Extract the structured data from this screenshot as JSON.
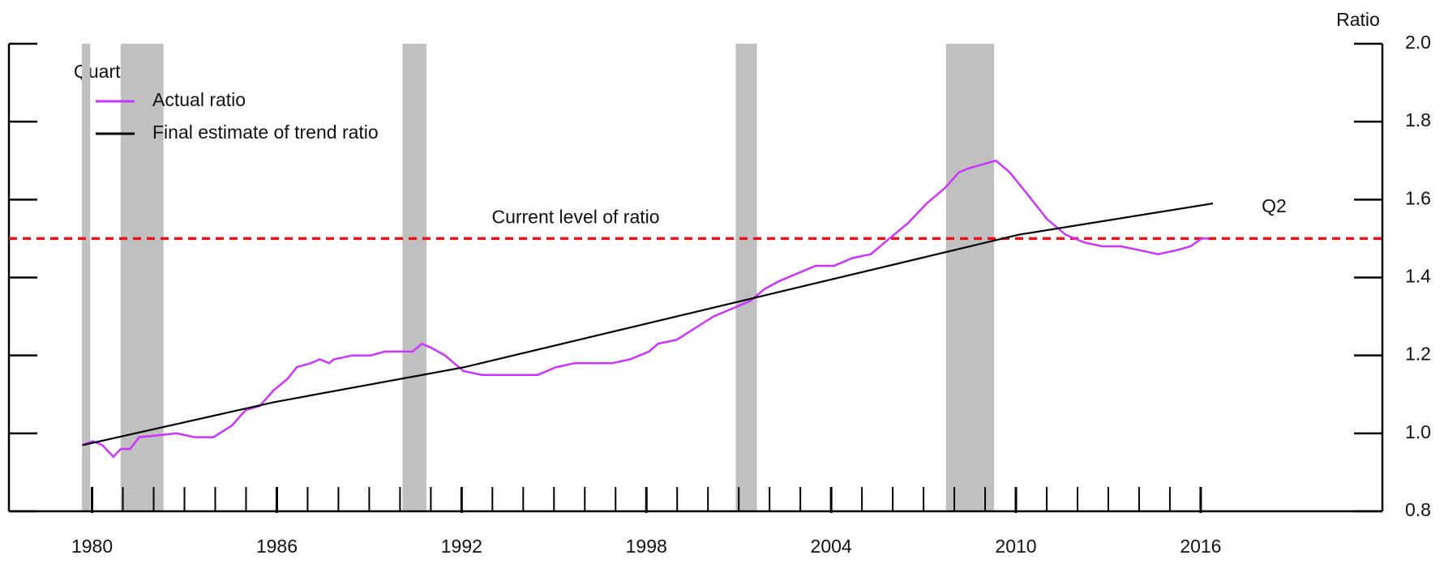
{
  "chart_data": {
    "type": "line",
    "y_axis_title": "Ratio",
    "legend_title": "Quarterly",
    "end_label": "Q2",
    "xlim": [
      1977.3,
      2021.9
    ],
    "xticks": [
      1980,
      1986,
      1992,
      1998,
      2004,
      2010,
      2016
    ],
    "xminorticks": [
      1980,
      1981,
      1982,
      1983,
      1984,
      1985,
      1986,
      1987,
      1988,
      1989,
      1990,
      1991,
      1992,
      1993,
      1994,
      1995,
      1996,
      1997,
      1998,
      1999,
      2000,
      2001,
      2002,
      2003,
      2004,
      2005,
      2006,
      2007,
      2008,
      2009,
      2010,
      2011,
      2012,
      2013,
      2014,
      2015,
      2016
    ],
    "ylim": [
      0.8,
      2.0
    ],
    "yticks": [
      0.8,
      {
        "value": 1,
        "label": "1.0"
      },
      1.2,
      1.4,
      1.6,
      1.8,
      {
        "value": 2,
        "label": "2.0"
      }
    ],
    "shaded_periods": [
      [
        1979.67,
        1979.94
      ],
      [
        1980.93,
        1982.32
      ],
      [
        1990.08,
        1990.86
      ],
      [
        2000.9,
        2001.59
      ],
      [
        2007.73,
        2009.29
      ]
    ],
    "shade_color": "#c0c0c0",
    "hline": {
      "value": 1.5,
      "label": "Current level of ratio",
      "color": "#e8141c"
    },
    "series": [
      {
        "name": "Actual ratio",
        "color": "#cc33ff",
        "x": [
          1979.67,
          1980.03,
          1980.33,
          1980.69,
          1980.93,
          1981.23,
          1981.53,
          1982.14,
          1982.74,
          1983.34,
          1983.94,
          1984.54,
          1984.99,
          1985.44,
          1985.89,
          1986.35,
          1986.65,
          1987.1,
          1987.4,
          1987.7,
          1987.85,
          1988.45,
          1989.05,
          1989.5,
          1989.95,
          1990.41,
          1990.71,
          1991.01,
          1991.46,
          1992.06,
          1992.66,
          1993.26,
          1993.86,
          1994.47,
          1995.07,
          1995.67,
          1996.27,
          1996.87,
          1997.47,
          1998.08,
          1998.38,
          1998.98,
          1999.58,
          2000.18,
          2000.78,
          2001.38,
          2001.83,
          2002.29,
          2002.89,
          2003.49,
          2004.09,
          2004.69,
          2005.29,
          2005.89,
          2006.5,
          2007.1,
          2007.7,
          2008.15,
          2008.45,
          2008.9,
          2009.35,
          2009.8,
          2010.41,
          2011.01,
          2011.61,
          2012.21,
          2012.81,
          2013.41,
          2014.02,
          2014.62,
          2015.22,
          2015.67,
          2016.03,
          2016.27
        ],
        "values": [
          0.97,
          0.98,
          0.97,
          0.94,
          0.96,
          0.96,
          0.99,
          0.995,
          1.0,
          0.99,
          0.99,
          1.02,
          1.06,
          1.07,
          1.11,
          1.14,
          1.17,
          1.18,
          1.19,
          1.18,
          1.19,
          1.2,
          1.2,
          1.21,
          1.21,
          1.21,
          1.23,
          1.22,
          1.2,
          1.16,
          1.15,
          1.15,
          1.15,
          1.15,
          1.17,
          1.18,
          1.18,
          1.18,
          1.19,
          1.21,
          1.23,
          1.24,
          1.27,
          1.3,
          1.32,
          1.34,
          1.37,
          1.39,
          1.41,
          1.43,
          1.43,
          1.45,
          1.46,
          1.5,
          1.54,
          1.59,
          1.63,
          1.67,
          1.68,
          1.69,
          1.7,
          1.67,
          1.61,
          1.55,
          1.51,
          1.49,
          1.48,
          1.48,
          1.47,
          1.46,
          1.47,
          1.48,
          1.5,
          1.5
        ]
      },
      {
        "name": "Final estimate of trend ratio",
        "color": "#000000",
        "x": [
          1979.7,
          1985.9,
          1992.1,
          2001.1,
          2010.1,
          2016.4
        ],
        "values": [
          0.97,
          1.08,
          1.17,
          1.34,
          1.51,
          1.59
        ]
      }
    ]
  }
}
